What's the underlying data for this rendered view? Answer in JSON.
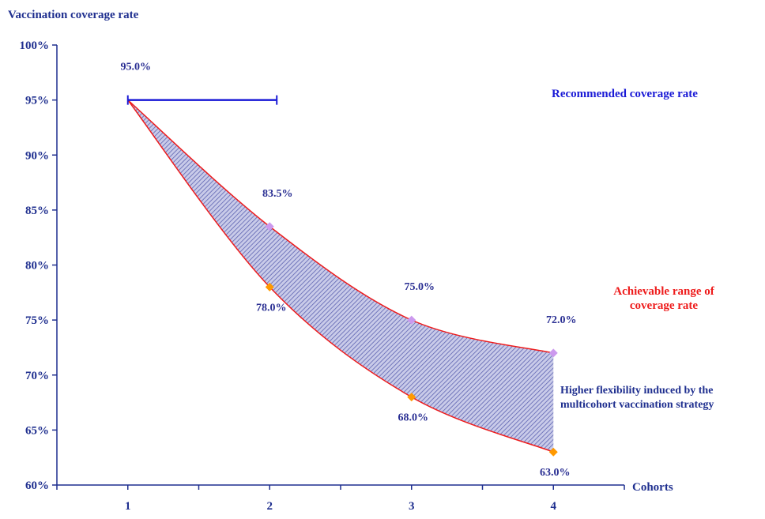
{
  "chart_data": {
    "type": "area",
    "ylabel": "Vaccination coverage rate",
    "xlabel": "Cohorts",
    "x": [
      1,
      2,
      3,
      4
    ],
    "x_ticks": [
      "1",
      "2",
      "3",
      "4"
    ],
    "y_ticks": [
      "60%",
      "65%",
      "70%",
      "75%",
      "80%",
      "85%",
      "90%",
      "95%",
      "100%"
    ],
    "ylim": [
      60,
      100
    ],
    "xlim": [
      0.5,
      4.5
    ],
    "series": [
      {
        "values": [
          95.0,
          83.5,
          75.0,
          72.0
        ],
        "labels": [
          "95.0%",
          "83.5%",
          "75.0%",
          "72.0%"
        ]
      },
      {
        "values": [
          95.0,
          78.0,
          68.0,
          63.0
        ],
        "labels": [
          "",
          "78.0%",
          "68.0%",
          "63.0%"
        ]
      }
    ],
    "reference": {
      "y": 95.0,
      "x_start": 1,
      "x_end": 2.05
    },
    "annotations": {
      "recommended": "Recommended coverage rate",
      "achievable_line1": "Achievable range of",
      "achievable_line2": "coverage rate",
      "flex_line1": "Higher flexibility induced by the",
      "flex_line2": "multicohort vaccination strategy"
    },
    "colors": {
      "axis": "#1f2f8f",
      "reference": "#1a1ad6",
      "range_edge": "#ee1c1c",
      "range_fill": "#6a70b8",
      "upper_marker": "#cc99ee",
      "lower_marker": "#ff9900"
    }
  }
}
